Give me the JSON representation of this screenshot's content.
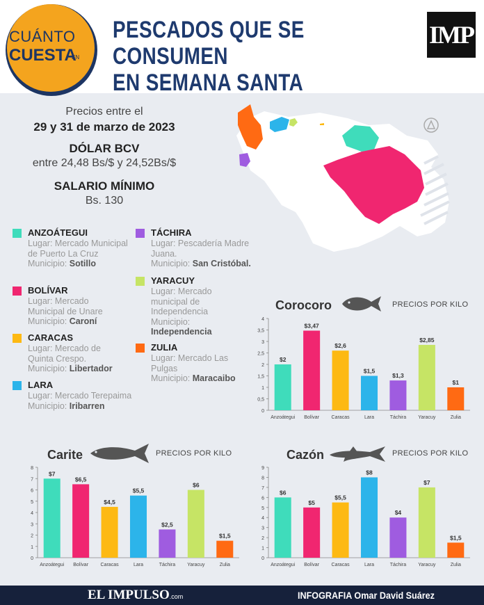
{
  "header": {
    "badge_line1": "CUÁNTO",
    "badge_line2": "CUESTA",
    "badge_line3": "EN",
    "title_line1": "PESCADOS QUE SE CONSUMEN",
    "title_line2": "EN SEMANA SANTA",
    "logo": "IMP"
  },
  "info": {
    "dates_label": "Precios entre el",
    "dates_value": "29 y 31 de marzo de 2023",
    "dolar_label": "DÓLAR BCV",
    "dolar_value": "entre 24,48 Bs/$ y 24,52Bs/$",
    "salario_label": "SALARIO MÍNIMO",
    "salario_value": "Bs. 130"
  },
  "legend": [
    {
      "state": "ANZOÁTEGUI",
      "color": "#3fdcbb",
      "place": "Lugar: Mercado Municipal de Puerto La Cruz",
      "mun_label": "Municipio:",
      "mun": "Sotillo"
    },
    {
      "state": "BOLÍVAR",
      "color": "#f02670",
      "place": "Lugar: Mercado Municipal de Unare",
      "mun_label": "Municipio:",
      "mun": "Caroní"
    },
    {
      "state": "CARACAS",
      "color": "#fdb913",
      "place": "Lugar: Mercado de Quinta Crespo.",
      "mun_label": "Municipio:",
      "mun": "Libertador"
    },
    {
      "state": "LARA",
      "color": "#2cb4ea",
      "place": "Lugar: Mercado Terepaima",
      "mun_label": "Municipio:",
      "mun": "Iribarren"
    },
    {
      "state": "TÁCHIRA",
      "color": "#9f5ce0",
      "place": "Lugar: Pescadería Madre Juana.",
      "mun_label": "Municipio:",
      "mun": "San Cristóbal."
    },
    {
      "state": "YARACUY",
      "color": "#c6e465",
      "place": "Lugar: Mercado municipal de Independencia",
      "mun_label": "Municipio:",
      "mun": "Independencia"
    },
    {
      "state": "ZULIA",
      "color": "#ff6a13",
      "place": "Lugar: Mercado Las Pulgas",
      "mun_label": "Municipio:",
      "mun": "Maracaibo"
    }
  ],
  "colors": {
    "anzoategui": "#3fdcbb",
    "bolivar": "#f02670",
    "caracas": "#fdb913",
    "lara": "#2cb4ea",
    "tachira": "#9f5ce0",
    "yaracuy": "#c6e465",
    "zulia": "#ff6a13",
    "navy": "#1e3a6e",
    "footer": "#16213b"
  },
  "chart_data": [
    {
      "type": "bar",
      "title": "Corocoro",
      "subtitle": "PRECIOS POR KILO",
      "categories": [
        "Anzoátegui",
        "Bolívar",
        "Caracas",
        "Lara",
        "Táchira",
        "Yaracuy",
        "Zulia"
      ],
      "values": [
        2,
        3.47,
        2.6,
        1.5,
        1.3,
        2.85,
        1
      ],
      "labels": [
        "$2",
        "$3,47",
        "$2,6",
        "$1,5",
        "$1,3",
        "$2,85",
        "$1"
      ],
      "yticks": [
        "0",
        "0,5",
        "1",
        "1,5",
        "2",
        "2,5",
        "3",
        "3,5",
        "4"
      ],
      "ylim": [
        0,
        4
      ],
      "grid": false,
      "legend": "none"
    },
    {
      "type": "bar",
      "title": "Carite",
      "subtitle": "PRECIOS POR KILO",
      "categories": [
        "Anzoátegui",
        "Bolívar",
        "Caracas",
        "Lara",
        "Táchira",
        "Yaracuy",
        "Zulia"
      ],
      "values": [
        7,
        6.5,
        4.5,
        5.5,
        2.5,
        6,
        1.5
      ],
      "labels": [
        "$7",
        "$6,5",
        "$4,5",
        "$5,5",
        "$2,5",
        "$6",
        "$1,5"
      ],
      "yticks": [
        "0",
        "1",
        "2",
        "3",
        "4",
        "5",
        "6",
        "7",
        "8"
      ],
      "ylim": [
        0,
        8
      ],
      "grid": false,
      "legend": "none"
    },
    {
      "type": "bar",
      "title": "Cazón",
      "subtitle": "PRECIOS POR KILO",
      "categories": [
        "Anzoátegui",
        "Bolívar",
        "Caracas",
        "Lara",
        "Táchira",
        "Yaracuy",
        "Zulia"
      ],
      "values": [
        6,
        5,
        5.5,
        8,
        4,
        7,
        1.5
      ],
      "labels": [
        "$6",
        "$5",
        "$5,5",
        "$8",
        "$4",
        "$7",
        "$1,5"
      ],
      "yticks": [
        "0",
        "1",
        "2",
        "3",
        "4",
        "5",
        "6",
        "7",
        "8",
        "9"
      ],
      "ylim": [
        0,
        9
      ],
      "grid": false,
      "legend": "none"
    }
  ],
  "footer": {
    "brand": "EL IMPULSO",
    "brand_suffix": ".com",
    "credit": "INFOGRAFIA Omar David Suárez"
  }
}
